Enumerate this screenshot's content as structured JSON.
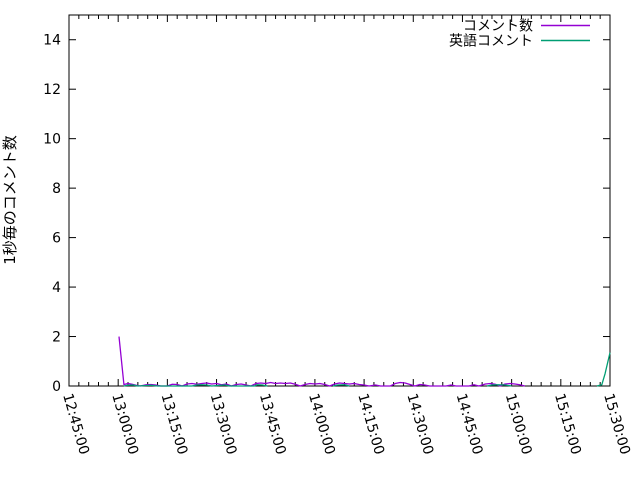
{
  "chart_data": {
    "type": "line",
    "title": "",
    "xlabel": "",
    "ylabel": "1秒毎のコメント数",
    "grid": false,
    "colors": {
      "background": "#ffffff",
      "axis": "#000000",
      "text": "#000000"
    },
    "x_axis": {
      "kind": "time",
      "start": "12:45:00",
      "end": "15:30:00",
      "major_tick_interval_min": 15,
      "minor_tick_interval_min": 3,
      "label_rotation_deg": 74,
      "tick_labels": [
        "12:45:00",
        "13:00:00",
        "13:15:00",
        "13:30:00",
        "13:45:00",
        "14:00:00",
        "14:15:00",
        "14:30:00",
        "14:45:00",
        "15:00:00",
        "15:15:00",
        "15:30:00"
      ]
    },
    "y_axis": {
      "min": 0,
      "max": 15,
      "tick_values": [
        0,
        2,
        4,
        6,
        8,
        10,
        12,
        14
      ],
      "tick_labels": [
        "0",
        "2",
        "4",
        "6",
        "8",
        "10",
        "12",
        "14"
      ]
    },
    "legend": {
      "position": "top-right-inside",
      "entries": [
        "コメント数",
        "英語コメント"
      ]
    },
    "series": [
      {
        "name": "コメント数",
        "slug": "comment-count",
        "color": "#9400d3",
        "points": [
          [
            "13:00:15",
            2.0
          ],
          [
            "13:01:45",
            0.06
          ],
          [
            "13:03:00",
            0.1
          ],
          [
            "13:04:15",
            0.07
          ],
          [
            "13:05:30",
            0.03
          ],
          [
            "13:06:45",
            0.0
          ],
          [
            "13:08:30",
            0.05
          ],
          [
            "13:10:00",
            0.06
          ],
          [
            "13:11:30",
            0.04
          ],
          [
            "13:13:00",
            0.0
          ],
          [
            "13:15:00",
            0.0
          ],
          [
            "13:16:30",
            0.07
          ],
          [
            "13:18:00",
            0.06
          ],
          [
            "13:19:30",
            0.0
          ],
          [
            "13:21:00",
            0.08
          ],
          [
            "13:22:30",
            0.1
          ],
          [
            "13:24:00",
            0.07
          ],
          [
            "13:25:30",
            0.1
          ],
          [
            "13:27:00",
            0.12
          ],
          [
            "13:28:30",
            0.08
          ],
          [
            "13:30:00",
            0.1
          ],
          [
            "13:31:30",
            0.05
          ],
          [
            "13:33:00",
            0.08
          ],
          [
            "13:34:30",
            0.0
          ],
          [
            "13:36:00",
            0.06
          ],
          [
            "13:37:30",
            0.08
          ],
          [
            "13:39:00",
            0.04
          ],
          [
            "13:40:30",
            0.0
          ],
          [
            "13:42:00",
            0.1
          ],
          [
            "13:43:30",
            0.12
          ],
          [
            "13:45:00",
            0.1
          ],
          [
            "13:46:30",
            0.14
          ],
          [
            "13:48:00",
            0.1
          ],
          [
            "13:49:30",
            0.12
          ],
          [
            "13:51:00",
            0.1
          ],
          [
            "13:52:30",
            0.12
          ],
          [
            "13:54:00",
            0.07
          ],
          [
            "13:55:30",
            0.0
          ],
          [
            "13:57:00",
            0.06
          ],
          [
            "13:58:30",
            0.1
          ],
          [
            "14:00:00",
            0.08
          ],
          [
            "14:01:30",
            0.1
          ],
          [
            "14:03:00",
            0.06
          ],
          [
            "14:04:30",
            0.0
          ],
          [
            "14:06:00",
            0.08
          ],
          [
            "14:07:30",
            0.12
          ],
          [
            "14:09:00",
            0.1
          ],
          [
            "14:10:30",
            0.08
          ],
          [
            "14:12:00",
            0.1
          ],
          [
            "14:13:30",
            0.06
          ],
          [
            "14:15:00",
            0.04
          ],
          [
            "14:16:30",
            0.0
          ],
          [
            "14:18:30",
            0.04
          ],
          [
            "14:20:00",
            0.0
          ],
          [
            "14:23:00",
            0.0
          ],
          [
            "14:24:30",
            0.1
          ],
          [
            "14:26:00",
            0.14
          ],
          [
            "14:27:30",
            0.12
          ],
          [
            "14:29:00",
            0.06
          ],
          [
            "14:30:30",
            0.0
          ],
          [
            "14:32:00",
            0.06
          ],
          [
            "14:33:30",
            0.04
          ],
          [
            "14:35:00",
            0.0
          ],
          [
            "14:40:00",
            0.0
          ],
          [
            "14:41:30",
            0.04
          ],
          [
            "14:43:00",
            0.0
          ],
          [
            "14:47:00",
            0.0
          ],
          [
            "14:48:30",
            0.05
          ],
          [
            "14:50:00",
            0.0
          ],
          [
            "14:52:00",
            0.08
          ],
          [
            "14:53:30",
            0.1
          ],
          [
            "14:55:00",
            0.07
          ],
          [
            "14:56:30",
            0.0
          ],
          [
            "14:58:00",
            0.08
          ],
          [
            "14:59:30",
            0.1
          ],
          [
            "15:01:00",
            0.08
          ],
          [
            "15:02:30",
            0.05
          ],
          [
            "15:04:00",
            0.0
          ]
        ]
      },
      {
        "name": "英語コメント",
        "slug": "english-comments",
        "color": "#009e73",
        "points": [
          [
            "13:01:40",
            0.0
          ],
          [
            "13:03:00",
            0.03
          ],
          [
            "13:04:30",
            0.04
          ],
          [
            "13:06:00",
            0.0
          ],
          [
            "13:10:00",
            0.03
          ],
          [
            "13:12:00",
            0.0
          ],
          [
            "13:22:30",
            0.0
          ],
          [
            "13:24:00",
            0.04
          ],
          [
            "13:25:30",
            0.05
          ],
          [
            "13:27:00",
            0.04
          ],
          [
            "13:28:30",
            0.0
          ],
          [
            "13:32:30",
            0.04
          ],
          [
            "13:34:00",
            0.0
          ],
          [
            "13:41:30",
            0.0
          ],
          [
            "13:42:30",
            0.05
          ],
          [
            "13:44:00",
            0.04
          ],
          [
            "13:45:30",
            0.0
          ],
          [
            "13:46:00",
            null
          ],
          [
            "14:05:30",
            0.0
          ],
          [
            "14:07:00",
            0.04
          ],
          [
            "14:09:00",
            0.05
          ],
          [
            "14:10:30",
            0.0
          ],
          [
            "14:11:00",
            null
          ],
          [
            "14:52:30",
            0.0
          ],
          [
            "14:54:00",
            0.04
          ],
          [
            "14:56:00",
            0.05
          ],
          [
            "14:58:00",
            0.04
          ],
          [
            "15:00:00",
            0.0
          ],
          [
            "15:00:30",
            null
          ],
          [
            "15:26:00",
            0.0
          ],
          [
            "15:27:30",
            0.05
          ],
          [
            "15:28:30",
            0.5
          ],
          [
            "15:30:00",
            1.35
          ]
        ]
      }
    ]
  }
}
